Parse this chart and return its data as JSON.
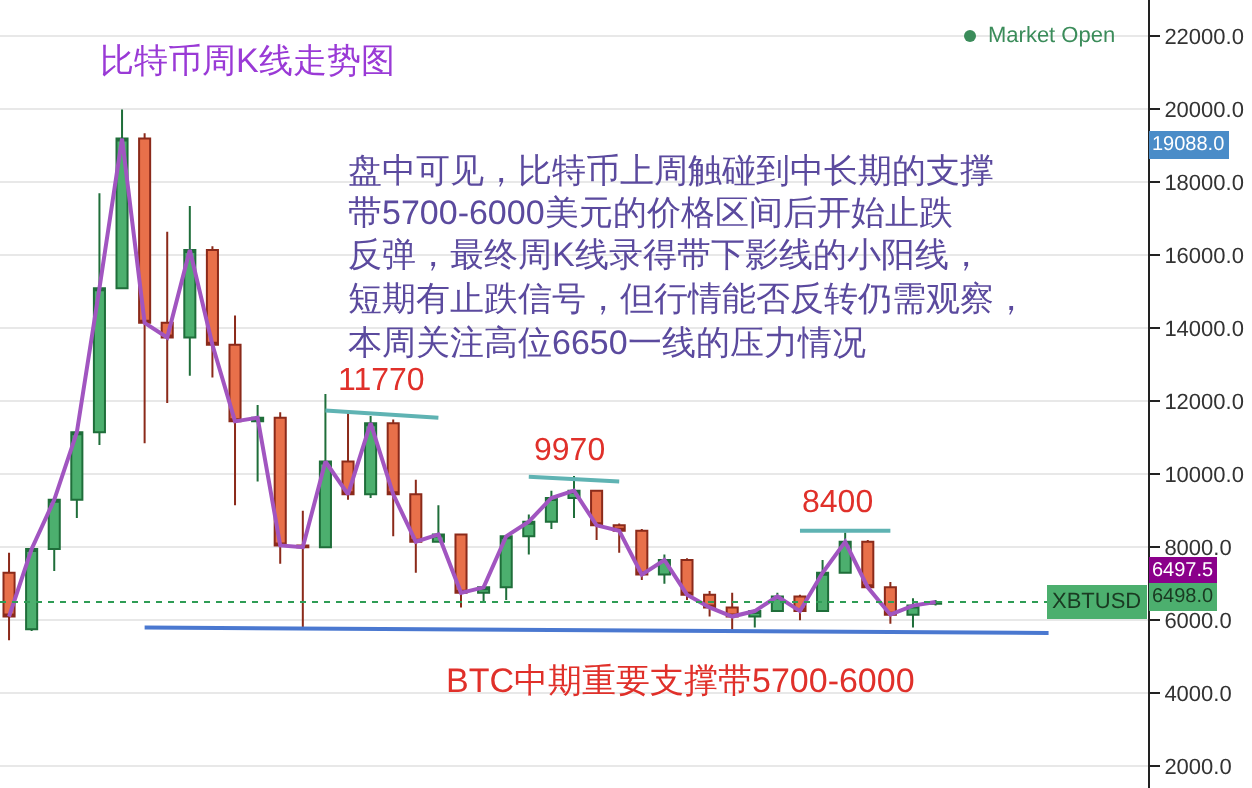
{
  "chart_data": {
    "type": "candlestick",
    "title": "比特币周K线走势图",
    "categories": [
      null,
      null,
      null,
      null,
      null,
      null,
      null,
      null,
      null,
      null,
      null,
      null,
      null,
      null,
      null,
      null,
      null,
      null,
      null,
      null,
      null,
      null,
      null,
      null,
      null,
      null,
      null,
      null,
      null,
      null,
      null,
      null,
      null,
      null,
      null,
      null,
      null,
      null,
      null,
      null,
      null,
      null,
      null,
      null,
      null,
      null,
      null,
      null
    ],
    "ohlc": [
      [
        7300,
        7850,
        5450,
        6100
      ],
      [
        5750,
        7950,
        5700,
        7950
      ],
      [
        7950,
        9300,
        7350,
        9300
      ],
      [
        9300,
        11150,
        8800,
        11150
      ],
      [
        11150,
        17700,
        10800,
        15100
      ],
      [
        15100,
        20000,
        15100,
        19200
      ],
      [
        19200,
        19350,
        10850,
        14150
      ],
      [
        14150,
        16650,
        11950,
        13750
      ],
      [
        13750,
        17350,
        12700,
        16150
      ],
      [
        16150,
        16250,
        12650,
        13550
      ],
      [
        13550,
        14350,
        9150,
        11450
      ],
      [
        11450,
        11900,
        9800,
        11550
      ],
      [
        11550,
        11700,
        7550,
        8050
      ],
      [
        8050,
        9000,
        5800,
        8000
      ],
      [
        8000,
        12200,
        8000,
        10350
      ],
      [
        10350,
        11700,
        9300,
        9450
      ],
      [
        9450,
        11600,
        9350,
        11400
      ],
      [
        11400,
        11500,
        8300,
        9450
      ],
      [
        9450,
        9850,
        7300,
        8150
      ],
      [
        8150,
        9150,
        8150,
        8350
      ],
      [
        8350,
        8350,
        6350,
        6750
      ],
      [
        6750,
        6950,
        6500,
        6900
      ],
      [
        6900,
        8300,
        6550,
        8300
      ],
      [
        8300,
        8900,
        7800,
        8700
      ],
      [
        8700,
        9550,
        8500,
        9350
      ],
      [
        9350,
        9950,
        8800,
        9550
      ],
      [
        9550,
        9550,
        8200,
        8600
      ],
      [
        8600,
        8650,
        7850,
        8450
      ],
      [
        8450,
        8500,
        7100,
        7250
      ],
      [
        7250,
        7800,
        7000,
        7650
      ],
      [
        7650,
        7700,
        6550,
        6700
      ],
      [
        6700,
        6800,
        6100,
        6350
      ],
      [
        6350,
        6750,
        5700,
        6100
      ],
      [
        6100,
        6300,
        5800,
        6250
      ],
      [
        6250,
        6750,
        6250,
        6650
      ],
      [
        6650,
        6700,
        6000,
        6250
      ],
      [
        6250,
        7650,
        6250,
        7300
      ],
      [
        7300,
        8400,
        7300,
        8150
      ],
      [
        8150,
        8200,
        6900,
        6900
      ],
      [
        6900,
        7050,
        5900,
        6150
      ],
      [
        6150,
        6600,
        5800,
        6400
      ],
      [
        6450,
        6550,
        6400,
        6500
      ],
      null,
      null,
      null,
      null,
      null,
      null
    ],
    "series": [
      {
        "type": "line",
        "color": "#a155c0",
        "values": [
          6100,
          7950,
          9300,
          11150,
          15100,
          19200,
          14150,
          13750,
          16150,
          13550,
          11450,
          11550,
          8050,
          8000,
          10350,
          9450,
          11400,
          9450,
          8150,
          8350,
          6750,
          6900,
          8300,
          8700,
          9350,
          9550,
          8600,
          8450,
          7250,
          7650,
          6700,
          6350,
          6100,
          6250,
          6650,
          6250,
          7300,
          8150,
          6900,
          6150,
          6400,
          6500,
          null,
          null,
          null,
          null,
          null,
          null
        ]
      },
      {
        "type": "line",
        "color": "#4a78d0",
        "values": [
          null,
          null,
          null,
          null,
          null,
          null,
          5800,
          null,
          null,
          null,
          null,
          null,
          null,
          null,
          null,
          null,
          null,
          null,
          null,
          null,
          null,
          null,
          null,
          null,
          null,
          null,
          null,
          null,
          null,
          null,
          null,
          null,
          null,
          null,
          null,
          null,
          null,
          null,
          null,
          null,
          null,
          null,
          null,
          null,
          null,
          null,
          5650,
          null
        ]
      },
      {
        "type": "line",
        "color": "#5fb3b3",
        "values": [
          null,
          null,
          null,
          null,
          null,
          null,
          null,
          null,
          null,
          null,
          null,
          null,
          null,
          null,
          11750,
          null,
          null,
          null,
          null,
          11550,
          null,
          null,
          null,
          null,
          null,
          null,
          null,
          null,
          null,
          null,
          null,
          null,
          null,
          null,
          null,
          null,
          null,
          null,
          null,
          null,
          null,
          null,
          null,
          null,
          null,
          null,
          null,
          null
        ]
      },
      {
        "type": "line",
        "color": "#5fb3b3",
        "values": [
          null,
          null,
          null,
          null,
          null,
          null,
          null,
          null,
          null,
          null,
          null,
          null,
          null,
          null,
          null,
          null,
          null,
          null,
          null,
          null,
          null,
          null,
          null,
          9930,
          null,
          null,
          null,
          9800,
          null,
          null,
          null,
          null,
          null,
          null,
          null,
          null,
          null,
          null,
          null,
          null,
          null,
          null,
          null,
          null,
          null,
          null,
          null,
          null
        ]
      },
      {
        "type": "line",
        "color": "#5fb3b3",
        "values": [
          null,
          null,
          null,
          null,
          null,
          null,
          null,
          null,
          null,
          null,
          null,
          null,
          null,
          null,
          null,
          null,
          null,
          null,
          null,
          null,
          null,
          null,
          null,
          null,
          null,
          null,
          null,
          null,
          null,
          null,
          null,
          null,
          null,
          null,
          null,
          8450,
          null,
          null,
          null,
          8450,
          null,
          null,
          null,
          null,
          null,
          null,
          null,
          null
        ]
      }
    ],
    "ylim": [
      1400,
      23000
    ],
    "yticks": [
      {
        "value": 2000,
        "label": "2000.0"
      },
      {
        "value": 4000,
        "label": "4000.0"
      },
      {
        "value": 6000,
        "label": "6000.0"
      },
      {
        "value": 8000,
        "label": "8000.0"
      },
      {
        "value": 10000,
        "label": "10000.0"
      },
      {
        "value": 12000,
        "label": "12000.0"
      },
      {
        "value": 14000,
        "label": "14000.0"
      },
      {
        "value": 16000,
        "label": "16000.0"
      },
      {
        "value": 18000,
        "label": "18000.0"
      },
      {
        "value": 20000,
        "label": "20000.0"
      },
      {
        "value": 22000,
        "label": "22000.0"
      }
    ],
    "grid": "y",
    "tick_labels": "y",
    "ref_lines": [
      {
        "axis": "y",
        "value": 6498,
        "label": "XBTUSD",
        "color": "#2e9c55",
        "line_style": "dotted"
      }
    ],
    "annotations": [
      "Market Open",
      "盘中可见，比特币上周触碰到中长期的支撑",
      "带5700-6000美元的价格区间后开始止跌",
      "反弹，最终周K线录得带下影线的小阳线，",
      "短期有止跌信号，但行情能否反转仍需观察，",
      "本周关注高位6650一线的压力情况",
      "11770",
      "9970",
      "8400",
      "BTC中期重要支撑带5700-6000",
      "19088.0",
      "6497.5",
      "6498.0"
    ]
  }
}
